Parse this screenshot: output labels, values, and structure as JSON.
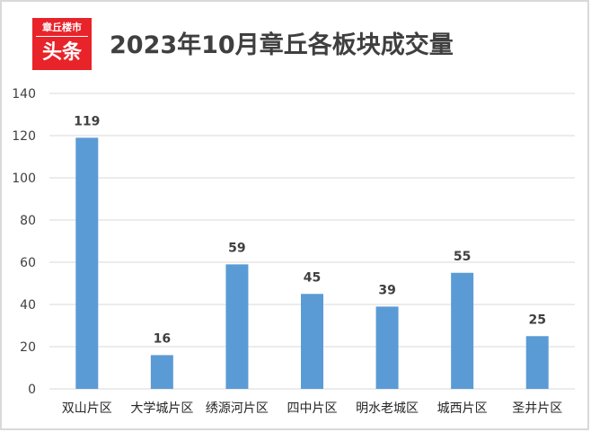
{
  "logo": {
    "line1": "章丘楼市",
    "line2": "头条"
  },
  "chart_data": {
    "type": "bar",
    "title": "2023年10月章丘各板块成交量",
    "xlabel": "",
    "ylabel": "",
    "categories": [
      "双山片区",
      "大学城片区",
      "绣源河片区",
      "四中片区",
      "明水老城区",
      "城西片区",
      "圣井片区"
    ],
    "values": [
      119,
      16,
      59,
      45,
      39,
      55,
      25
    ],
    "ylim": [
      0,
      140
    ],
    "yticks": [
      0,
      20,
      40,
      60,
      80,
      100,
      120,
      140
    ],
    "grid": true,
    "legend": "none",
    "bar_color": "#5b9bd5"
  }
}
